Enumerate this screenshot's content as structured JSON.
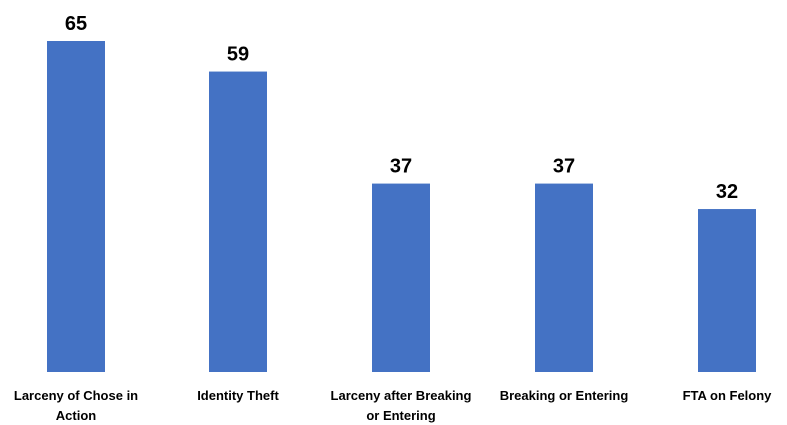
{
  "chart_data": {
    "type": "bar",
    "title": "",
    "xlabel": "",
    "ylabel": "",
    "categories": [
      [
        "Larceny of Chose in",
        "Action"
      ],
      [
        "Identity Theft"
      ],
      [
        "Larceny after Breaking",
        "or Entering"
      ],
      [
        "Breaking or Entering"
      ],
      [
        "FTA on Felony"
      ]
    ],
    "values": [
      65,
      59,
      37,
      37,
      32
    ],
    "ylim": [
      0,
      65
    ],
    "grid": false,
    "legend": "none",
    "bar_color": "#4472C4"
  }
}
